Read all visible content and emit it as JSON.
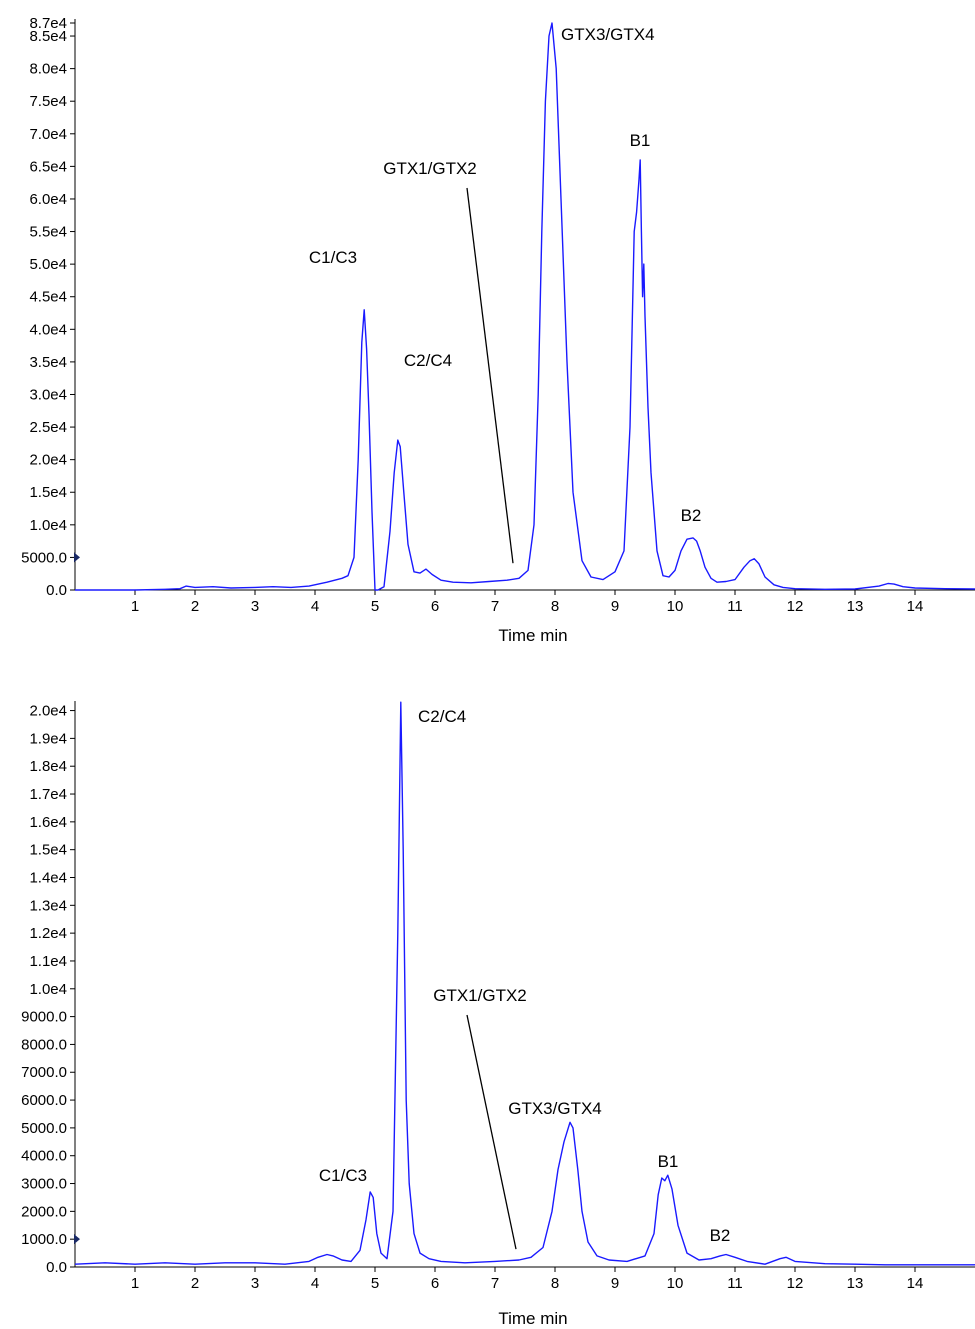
{
  "chart_data": [
    {
      "type": "line",
      "panel": "top",
      "xlabel": "Time min",
      "ylabel": "",
      "xlim": [
        0,
        15
      ],
      "ylim": [
        0,
        87000
      ],
      "x_ticks": [
        1,
        2,
        3,
        4,
        5,
        6,
        7,
        8,
        9,
        10,
        11,
        12,
        13,
        14
      ],
      "x_tick_labels": [
        "1",
        "2",
        "3",
        "4",
        "5",
        "6",
        "7",
        "8",
        "9",
        "10",
        "11",
        "12",
        "13",
        "14"
      ],
      "y_ticks": [
        0,
        5000,
        10000,
        15000,
        20000,
        25000,
        30000,
        35000,
        40000,
        45000,
        50000,
        55000,
        60000,
        65000,
        70000,
        75000,
        80000,
        85000,
        87000
      ],
      "y_tick_labels": [
        "0.0",
        "5000.0",
        "1.0e4",
        "1.5e4",
        "2.0e4",
        "2.5e4",
        "3.0e4",
        "3.5e4",
        "4.0e4",
        "4.5e4",
        "5.0e4",
        "5.5e4",
        "6.0e4",
        "6.5e4",
        "7.0e4",
        "7.5e4",
        "8.0e4",
        "8.5e4",
        "8.7e4"
      ],
      "series_color": "#1a1aff",
      "series": [
        {
          "x": [
            0.0,
            0.5,
            1.0,
            1.5,
            1.75,
            1.85,
            2.0,
            2.3,
            2.6,
            3.0,
            3.3,
            3.6,
            3.9,
            4.2,
            4.45,
            4.55,
            4.65,
            4.72,
            4.78,
            4.82,
            4.86,
            4.9,
            4.95,
            5.0,
            5.05,
            5.15,
            5.25,
            5.32,
            5.38,
            5.42,
            5.48,
            5.55,
            5.65,
            5.75,
            5.85,
            5.95,
            6.1,
            6.3,
            6.6,
            6.9,
            7.2,
            7.4,
            7.55,
            7.65,
            7.72,
            7.78,
            7.84,
            7.9,
            7.95,
            8.02,
            8.1,
            8.2,
            8.3,
            8.45,
            8.6,
            8.8,
            9.0,
            9.15,
            9.25,
            9.32,
            9.36,
            9.4,
            9.42,
            9.44,
            9.46,
            9.48,
            9.5,
            9.55,
            9.6,
            9.7,
            9.8,
            9.9,
            10.0,
            10.1,
            10.2,
            10.3,
            10.36,
            10.42,
            10.5,
            10.6,
            10.7,
            10.85,
            11.0,
            11.15,
            11.25,
            11.32,
            11.4,
            11.5,
            11.65,
            11.8,
            12.0,
            12.5,
            13.0,
            13.4,
            13.55,
            13.65,
            13.8,
            14.0,
            14.5,
            15.0
          ],
          "y": [
            0,
            0,
            0,
            100,
            200,
            600,
            400,
            500,
            300,
            400,
            500,
            400,
            600,
            1200,
            1800,
            2200,
            5000,
            20000,
            38000,
            43000,
            37000,
            27000,
            12000,
            0,
            0,
            500,
            9000,
            18000,
            23000,
            22000,
            15000,
            7000,
            2800,
            2600,
            3200,
            2400,
            1500,
            1200,
            1100,
            1300,
            1500,
            1800,
            3000,
            10000,
            30000,
            55000,
            75000,
            85000,
            87000,
            80000,
            60000,
            35000,
            15000,
            4500,
            2000,
            1600,
            2800,
            6000,
            25000,
            55000,
            58000,
            63000,
            66000,
            55000,
            45000,
            50000,
            42000,
            28000,
            18000,
            6000,
            2200,
            2000,
            3000,
            6000,
            7800,
            8000,
            7500,
            6000,
            3500,
            1800,
            1200,
            1300,
            1600,
            3500,
            4500,
            4800,
            4000,
            2000,
            800,
            400,
            200,
            100,
            150,
            600,
            1000,
            900,
            500,
            300,
            200,
            150
          ]
        }
      ],
      "annotations": [
        {
          "text": "C1/C3",
          "x": 4.8,
          "y": 43000
        },
        {
          "text": "C2/C4",
          "x": 5.4,
          "y": 23000
        },
        {
          "text": "GTX1/GTX2",
          "x": 7.3,
          "y": 3500
        },
        {
          "text": "GTX3/GTX4",
          "x": 7.95,
          "y": 87000
        },
        {
          "text": "B1",
          "x": 9.42,
          "y": 66000
        },
        {
          "text": "B2",
          "x": 10.3,
          "y": 8000
        }
      ]
    },
    {
      "type": "line",
      "panel": "bottom",
      "xlabel": "Time min",
      "ylabel": "",
      "xlim": [
        0,
        15
      ],
      "ylim": [
        0,
        20200
      ],
      "x_ticks": [
        1,
        2,
        3,
        4,
        5,
        6,
        7,
        8,
        9,
        10,
        11,
        12,
        13,
        14
      ],
      "x_tick_labels": [
        "1",
        "2",
        "3",
        "4",
        "5",
        "6",
        "7",
        "8",
        "9",
        "10",
        "11",
        "12",
        "13",
        "14"
      ],
      "y_ticks": [
        0,
        1000,
        2000,
        3000,
        4000,
        5000,
        6000,
        7000,
        8000,
        9000,
        10000,
        11000,
        12000,
        13000,
        14000,
        15000,
        16000,
        17000,
        18000,
        19000,
        20000
      ],
      "y_tick_labels": [
        "0.0",
        "1000.0",
        "2000.0",
        "3000.0",
        "4000.0",
        "5000.0",
        "6000.0",
        "7000.0",
        "8000.0",
        "9000.0",
        "1.0e4",
        "1.1e4",
        "1.2e4",
        "1.3e4",
        "1.4e4",
        "1.5e4",
        "1.6e4",
        "1.7e4",
        "1.8e4",
        "1.9e4",
        "2.0e4"
      ],
      "series_color": "#1a1aff",
      "series": [
        {
          "x": [
            0.0,
            0.5,
            1.0,
            1.5,
            2.0,
            2.5,
            3.0,
            3.5,
            3.9,
            4.05,
            4.2,
            4.3,
            4.45,
            4.6,
            4.75,
            4.85,
            4.92,
            4.97,
            5.03,
            5.1,
            5.2,
            5.3,
            5.38,
            5.43,
            5.47,
            5.52,
            5.57,
            5.65,
            5.75,
            5.9,
            6.1,
            6.5,
            7.0,
            7.4,
            7.6,
            7.8,
            7.95,
            8.05,
            8.15,
            8.25,
            8.3,
            8.38,
            8.45,
            8.55,
            8.7,
            8.9,
            9.2,
            9.5,
            9.65,
            9.72,
            9.78,
            9.83,
            9.88,
            9.95,
            10.05,
            10.2,
            10.4,
            10.6,
            10.75,
            10.85,
            11.0,
            11.2,
            11.5,
            11.75,
            11.85,
            12.0,
            12.5,
            13.0,
            13.5,
            14.0,
            14.5,
            15.0
          ],
          "y": [
            100,
            150,
            100,
            150,
            100,
            150,
            150,
            100,
            200,
            350,
            450,
            400,
            250,
            200,
            600,
            1700,
            2700,
            2500,
            1200,
            500,
            300,
            2000,
            12000,
            20300,
            15000,
            6000,
            3000,
            1200,
            500,
            300,
            200,
            150,
            200,
            250,
            350,
            700,
            2000,
            3500,
            4500,
            5200,
            5000,
            3500,
            2000,
            900,
            400,
            250,
            200,
            400,
            1200,
            2600,
            3200,
            3100,
            3300,
            2800,
            1500,
            500,
            250,
            300,
            400,
            450,
            350,
            200,
            100,
            300,
            350,
            200,
            120,
            100,
            80,
            80,
            80,
            80
          ]
        }
      ],
      "annotations": [
        {
          "text": "C1/C3",
          "x": 4.95,
          "y": 2700
        },
        {
          "text": "C2/C4",
          "x": 5.45,
          "y": 20300
        },
        {
          "text": "GTX1/GTX2",
          "x": 7.35,
          "y": 500
        },
        {
          "text": "GTX3/GTX4",
          "x": 8.28,
          "y": 5200
        },
        {
          "text": "B1",
          "x": 9.85,
          "y": 3300
        },
        {
          "text": "B2",
          "x": 10.85,
          "y": 450
        }
      ]
    }
  ]
}
